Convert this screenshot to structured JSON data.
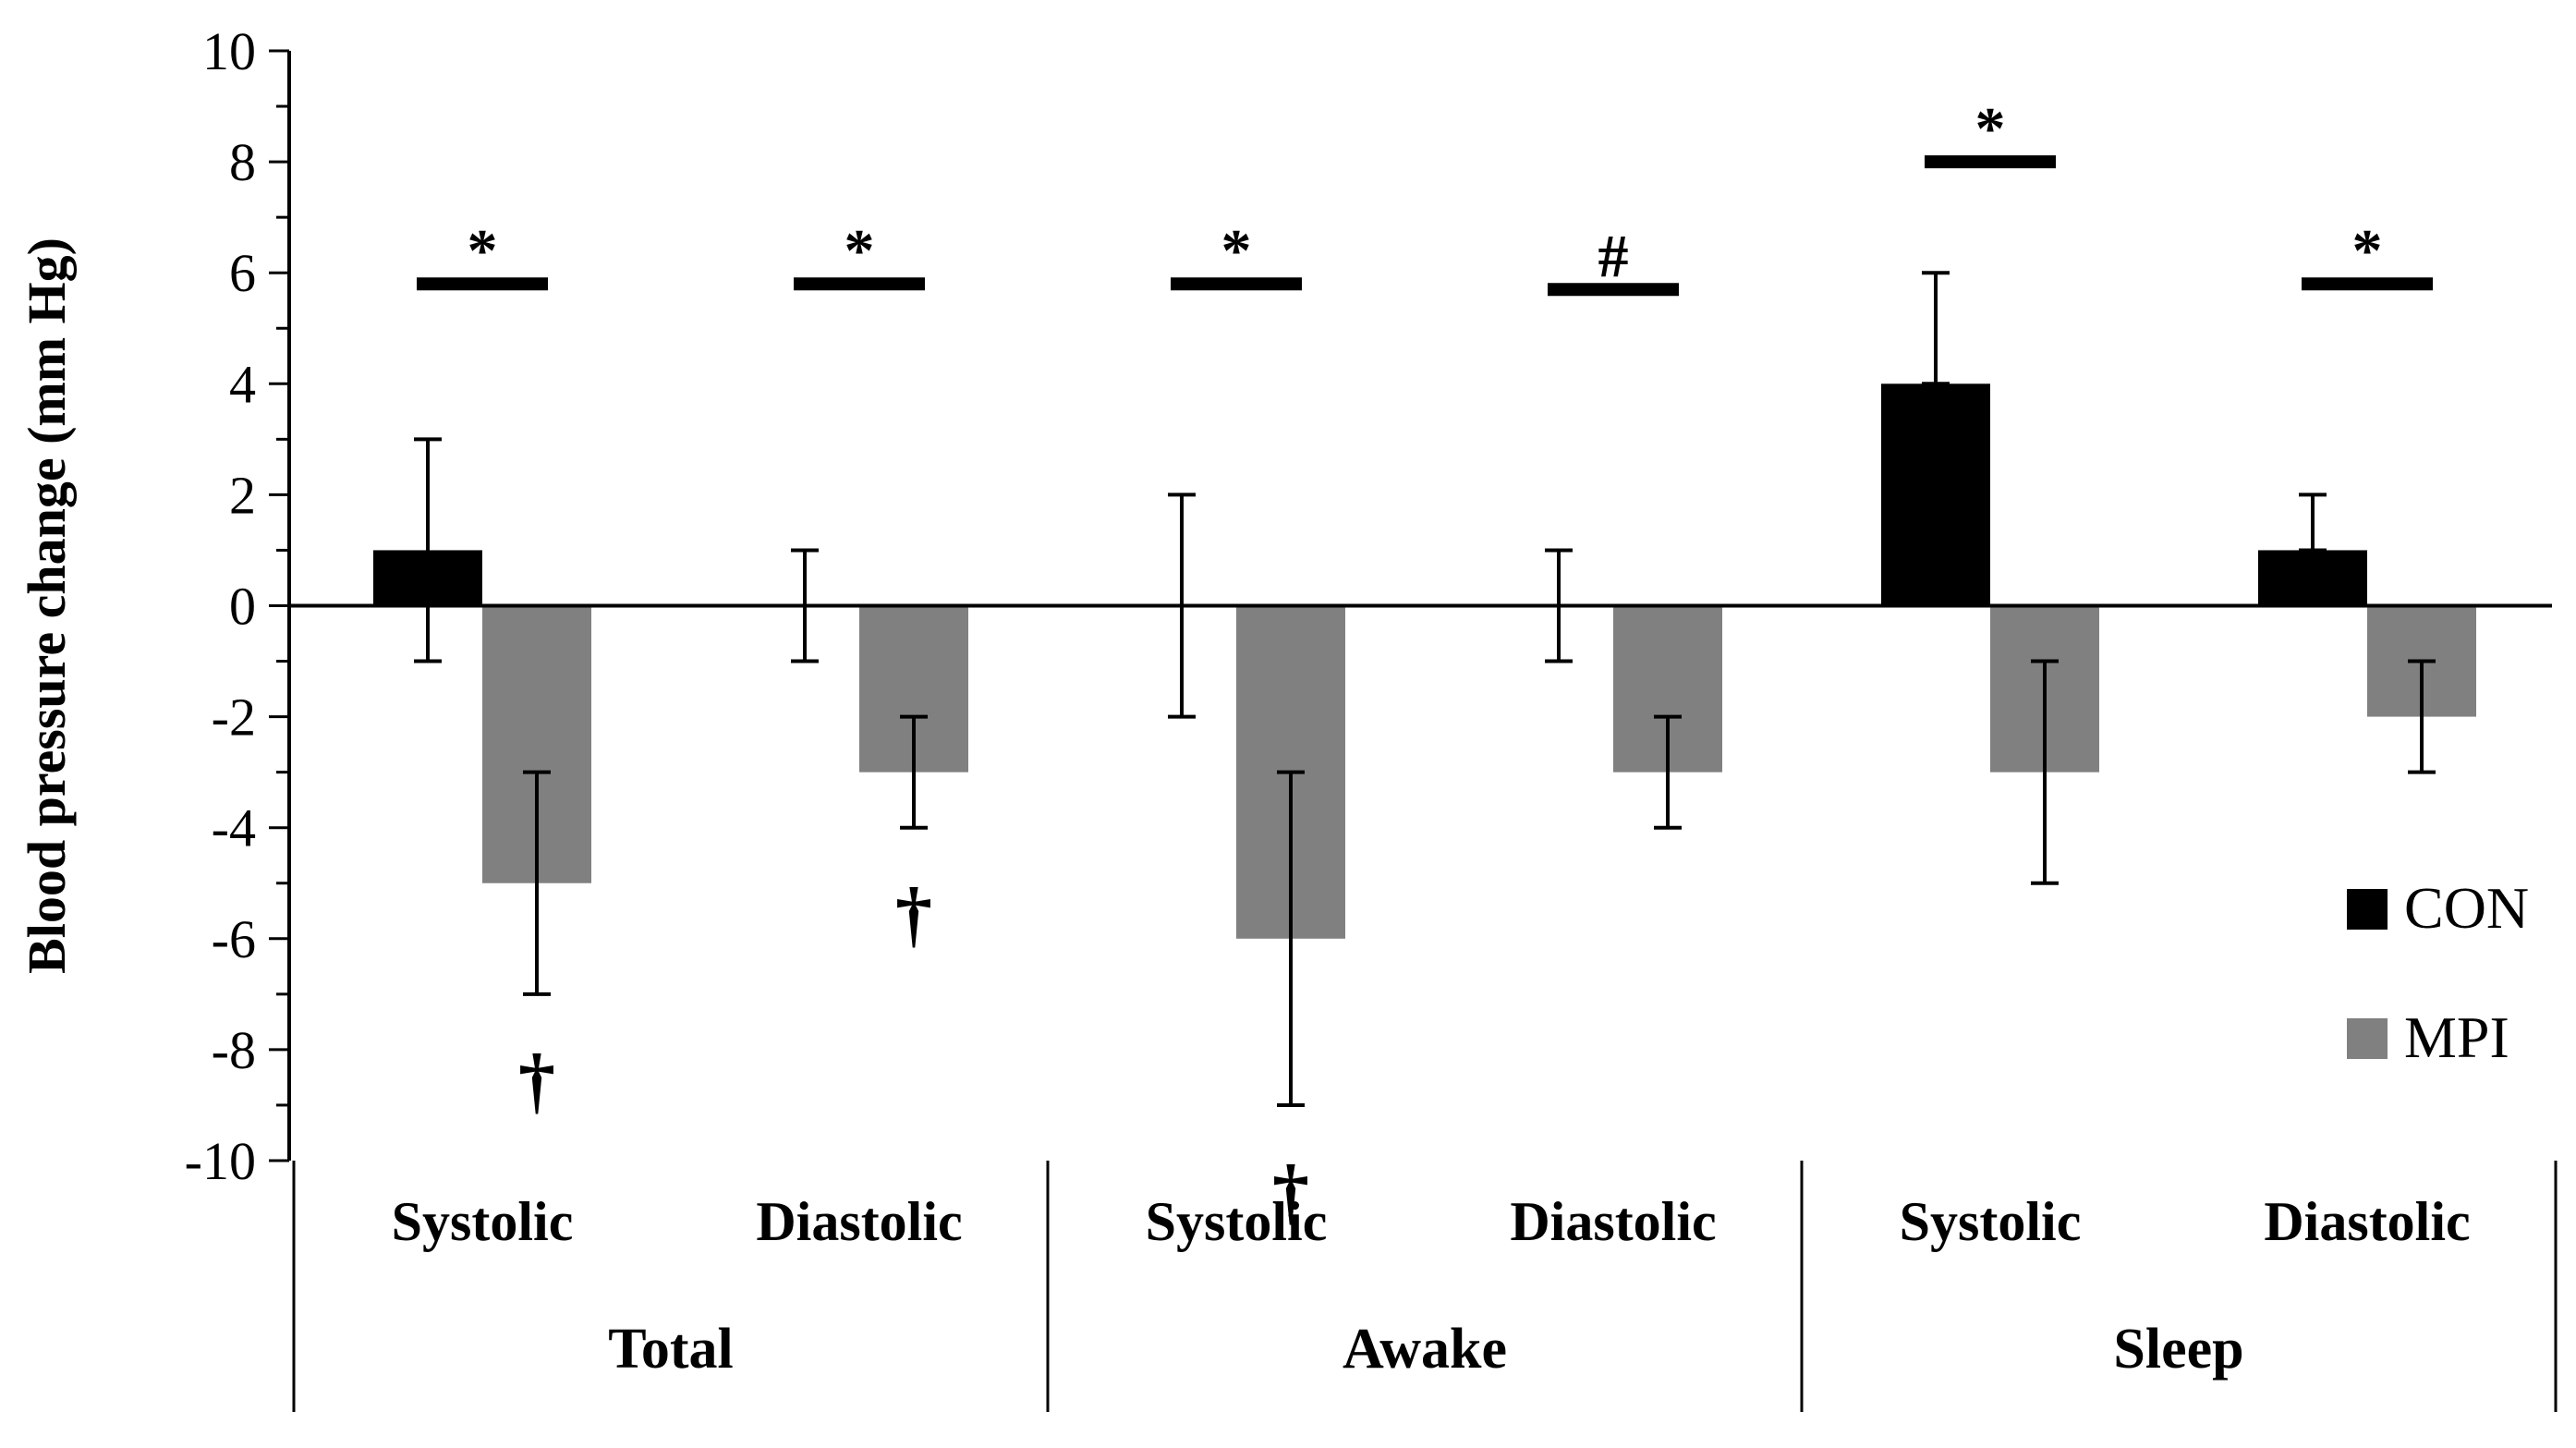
{
  "colors": {
    "CON": "#000000",
    "MPI": "#808080",
    "axis": "#000000"
  },
  "chart_data": {
    "type": "bar",
    "title": "",
    "xlabel": "",
    "ylabel": "Blood pressure change (mm Hg)",
    "ylim": [
      -10,
      10
    ],
    "yticks": [
      10,
      8,
      6,
      4,
      2,
      0,
      -2,
      -4,
      -6,
      -8,
      -10
    ],
    "yticks_labels": [
      "10",
      "8",
      "6",
      "4",
      "2",
      "0",
      "-2",
      "-4",
      "-6",
      "-8",
      "-10"
    ],
    "categories": [
      "Systolic",
      "Diastolic",
      "Systolic",
      "Diastolic",
      "Systolic",
      "Diastolic"
    ],
    "groups": [
      {
        "label": "Total",
        "categories": [
          0,
          1
        ]
      },
      {
        "label": "Awake",
        "categories": [
          2,
          3
        ]
      },
      {
        "label": "Sleep",
        "categories": [
          4,
          5
        ]
      }
    ],
    "series": [
      {
        "name": "CON",
        "values": [
          1,
          0,
          0,
          0,
          4,
          1
        ],
        "err_low": [
          -1,
          -1,
          -2,
          -1,
          4,
          1
        ],
        "err_high": [
          3,
          1,
          2,
          1,
          6,
          2
        ]
      },
      {
        "name": "MPI",
        "values": [
          -5,
          -3,
          -6,
          -3,
          -3,
          -2
        ],
        "err_low": [
          -7,
          -4,
          -9,
          -4,
          -5,
          -3
        ],
        "err_high": [
          -3,
          -2,
          -3,
          -2,
          -1,
          -1
        ]
      }
    ],
    "significance": [
      {
        "category": 0,
        "symbol": "*",
        "y": 5.8
      },
      {
        "category": 1,
        "symbol": "*",
        "y": 5.8
      },
      {
        "category": 2,
        "symbol": "*",
        "y": 5.8
      },
      {
        "category": 3,
        "symbol": "#",
        "y": 5.7
      },
      {
        "category": 4,
        "symbol": "*",
        "y": 8.0
      },
      {
        "category": 5,
        "symbol": "*",
        "y": 5.8
      }
    ],
    "daggers": [
      {
        "category": 0,
        "symbol": "†",
        "y": -8.5
      },
      {
        "category": 1,
        "symbol": "†",
        "y": -5.5
      },
      {
        "category": 2,
        "symbol": "†",
        "y": -10.5
      }
    ],
    "legend": [
      {
        "name": "CON",
        "label": "CON"
      },
      {
        "name": "MPI",
        "label": "MPI"
      }
    ],
    "legend_position": "right"
  }
}
